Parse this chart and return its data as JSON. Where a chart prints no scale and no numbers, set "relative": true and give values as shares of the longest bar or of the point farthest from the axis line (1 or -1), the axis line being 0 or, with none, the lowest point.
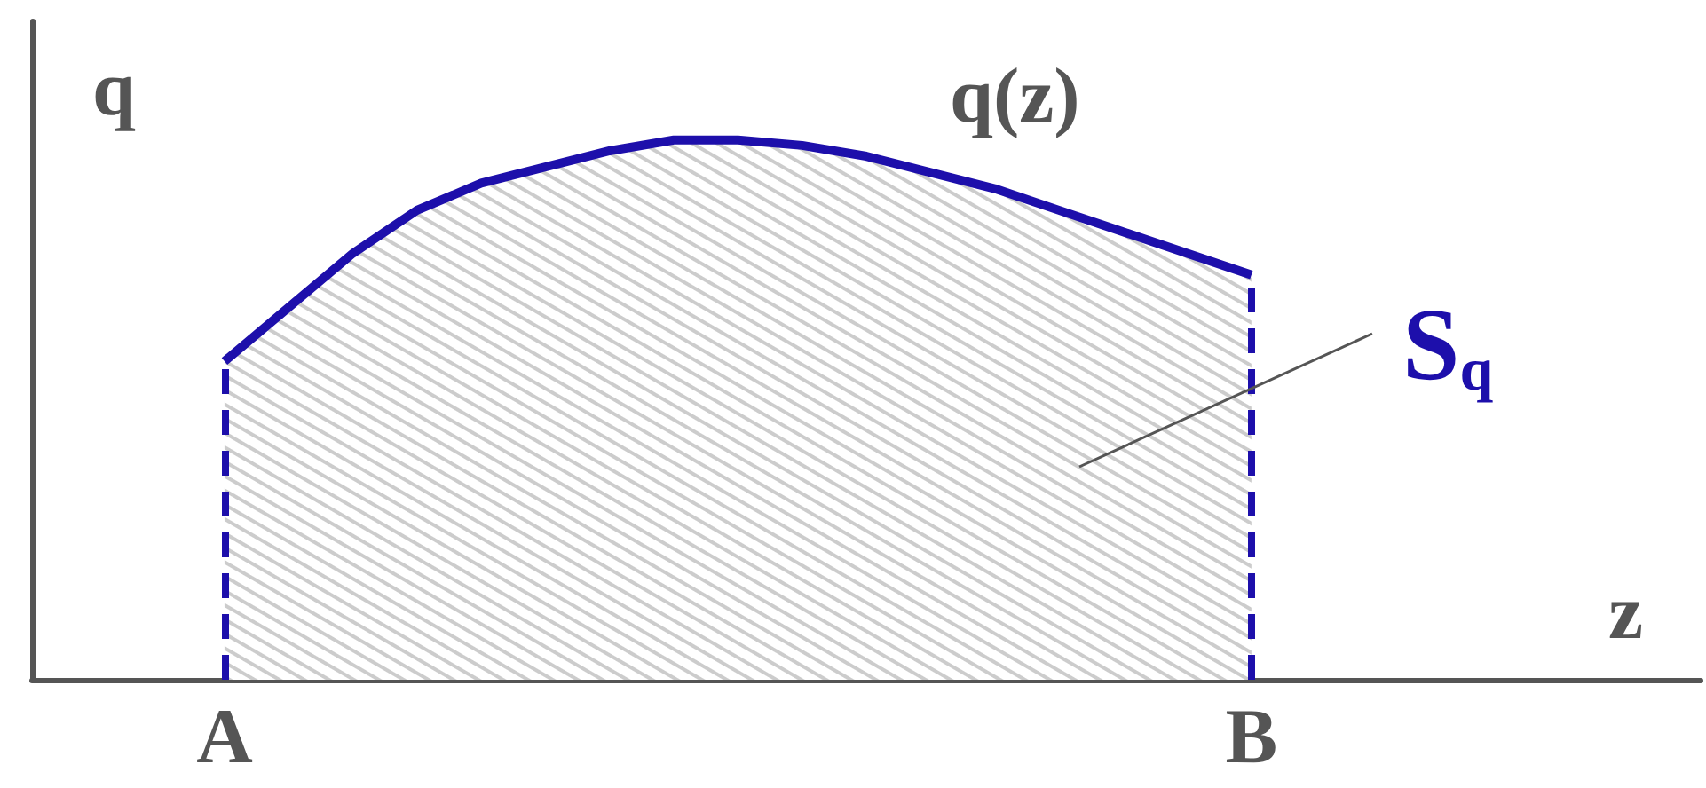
{
  "chart_data": {
    "type": "area",
    "relative": true,
    "xlabel": "z",
    "ylabel": "q",
    "categories": [
      null,
      null,
      null,
      "A",
      null,
      null,
      null,
      null,
      null,
      null,
      null,
      null,
      null,
      null,
      null,
      null,
      null,
      null,
      null,
      "B",
      null,
      null,
      null,
      null,
      null,
      null,
      null
    ],
    "series": [
      {
        "color": "#1d0fab",
        "values": [
          null,
          null,
          null,
          0.59,
          0.69,
          0.79,
          0.87,
          0.92,
          0.95,
          0.98,
          1,
          1,
          0.99,
          0.97,
          0.94,
          0.91,
          0.87,
          0.83,
          0.79,
          0.75,
          null,
          null,
          null,
          null,
          null,
          null,
          null
        ]
      }
    ],
    "ref_lines": [
      {
        "axis": "x",
        "value": "A",
        "color": "#1d0fab",
        "line_style": "dashed"
      },
      {
        "axis": "x",
        "value": "B",
        "color": "#1d0fab",
        "line_style": "dashed"
      }
    ],
    "annotations": [
      "q(z)",
      "S$_{q}$"
    ],
    "tick_labels": "x",
    "grid": false,
    "marker": "none"
  }
}
